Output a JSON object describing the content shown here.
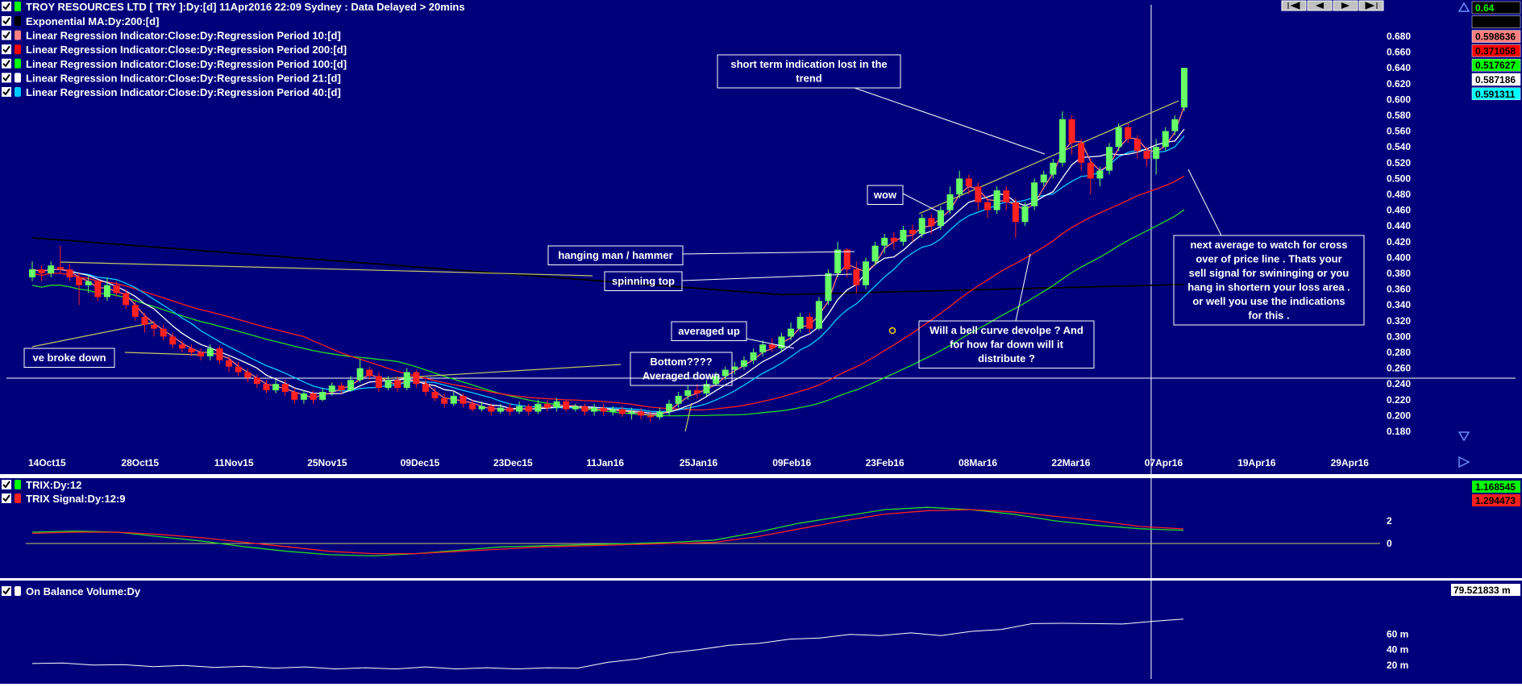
{
  "header": {
    "title": "TROY RESOURCES LTD [ TRY ]:Dy:[d]  11Apr2016 22:09 Sydney : Data Delayed > 20mins"
  },
  "legend_main": [
    {
      "label": "Exponential MA:Dy:200:[d]",
      "color": "#000000"
    },
    {
      "label": "Linear Regression Indicator:Close:Dy:Regression Period 10:[d]",
      "color": "#ff8080"
    },
    {
      "label": "Linear Regression Indicator:Close:Dy:Regression Period 200:[d]",
      "color": "#ff0000"
    },
    {
      "label": "Linear Regression Indicator:Close:Dy:Regression Period 100:[d]",
      "color": "#00ff00"
    },
    {
      "label": "Linear Regression Indicator:Close:Dy:Regression Period 21:[d]",
      "color": "#ffffff"
    },
    {
      "label": "Linear Regression Indicator:Close:Dy:Regression Period 40:[d]",
      "color": "#00ccff"
    }
  ],
  "value_badges": [
    {
      "value": "0.64",
      "bg": "#000000",
      "fg": "#00ff00"
    },
    {
      "value": "",
      "bg": "#000000",
      "fg": "#000000"
    },
    {
      "value": "0.598636",
      "bg": "#ff8080",
      "fg": "#000000"
    },
    {
      "value": "0.371058",
      "bg": "#ff0000",
      "fg": "#000000"
    },
    {
      "value": "0.517627",
      "bg": "#00ff00",
      "fg": "#000000"
    },
    {
      "value": "0.587186",
      "bg": "#ffffff",
      "fg": "#000000"
    },
    {
      "value": "0.591311",
      "bg": "#00ffff",
      "fg": "#000000"
    }
  ],
  "colors": {
    "background": "#00007b",
    "up_candle": "#66ff66",
    "down_candle": "#ff2020",
    "ema200": "#000000",
    "lr10": "#ff8080",
    "lr200": "#ff2020",
    "lr100": "#22dd22",
    "lr21": "#ffffff",
    "lr40": "#00ccff",
    "trendline": "#c8c864",
    "crosshair": "#ffffff"
  },
  "annotations": [
    {
      "name": "short-term-indication",
      "lines": [
        "short term indication lost in the",
        "trend"
      ]
    },
    {
      "name": "wow",
      "lines": [
        "wow"
      ]
    },
    {
      "name": "hanging-man",
      "lines": [
        "hanging man / hammer"
      ]
    },
    {
      "name": "spinning-top",
      "lines": [
        "spinning top"
      ]
    },
    {
      "name": "averaged-up",
      "lines": [
        "averaged up"
      ]
    },
    {
      "name": "bottom",
      "lines": [
        "Bottom????",
        "Averaged down"
      ]
    },
    {
      "name": "broke-down",
      "lines": [
        "ve broke down"
      ]
    },
    {
      "name": "bell-curve",
      "lines": [
        "Will a bell curve devolpe ? And",
        "for how far down will it",
        "distribute ?"
      ]
    },
    {
      "name": "next-average",
      "lines": [
        "next average to watch for cross",
        "over of price line . Thats your",
        "sell signal for swininging or you",
        "hang in shortern your loss area .",
        "or well you use the indications",
        "for this ."
      ]
    }
  ],
  "trix_panel": {
    "legend": [
      {
        "label": "TRIX:Dy:12",
        "color": "#00ff00"
      },
      {
        "label": "TRIX Signal:Dy:12:9",
        "color": "#ff2020"
      }
    ],
    "badges": [
      {
        "value": "1.168545",
        "bg": "#00ff00",
        "fg": "#000000"
      },
      {
        "value": "1.294473",
        "bg": "#ff2020",
        "fg": "#000000"
      }
    ]
  },
  "obv_panel": {
    "legend": [
      {
        "label": "On Balance Volume:Dy",
        "color": "#ffffff"
      }
    ],
    "badge": {
      "value": "79.521833 m",
      "bg": "#ffffff",
      "fg": "#000000"
    }
  },
  "chart_data": [
    {
      "type": "candlestick",
      "title": "TROY RESOURCES LTD [ TRY ]:Dy:[d]",
      "x_tick_labels": [
        "14Oct15",
        "28Oct15",
        "11Nov15",
        "25Nov15",
        "09Dec15",
        "23Dec15",
        "11Jan16",
        "25Jan16",
        "09Feb16",
        "23Feb16",
        "08Mar16",
        "22Mar16",
        "07Apr16",
        "19Apr16",
        "29Apr16"
      ],
      "y_ticks": [
        "0.680",
        "0.660",
        "0.640",
        "0.620",
        "0.600",
        "0.580",
        "0.560",
        "0.540",
        "0.520",
        "0.500",
        "0.480",
        "0.460",
        "0.440",
        "0.420",
        "0.400",
        "0.380",
        "0.360",
        "0.340",
        "0.320",
        "0.300",
        "0.280",
        "0.260",
        "0.240",
        "0.220",
        "0.200",
        "0.180"
      ],
      "ylim": [
        0.17,
        0.69
      ],
      "candles": [
        [
          0.375,
          0.385,
          0.395,
          0.37
        ],
        [
          0.385,
          0.38,
          0.39,
          0.37
        ],
        [
          0.38,
          0.39,
          0.395,
          0.375
        ],
        [
          0.388,
          0.385,
          0.415,
          0.38
        ],
        [
          0.385,
          0.375,
          0.392,
          0.37
        ],
        [
          0.375,
          0.365,
          0.38,
          0.34
        ],
        [
          0.365,
          0.37,
          0.378,
          0.355
        ],
        [
          0.37,
          0.35,
          0.372,
          0.345
        ],
        [
          0.35,
          0.365,
          0.375,
          0.345
        ],
        [
          0.365,
          0.355,
          0.37,
          0.35
        ],
        [
          0.355,
          0.34,
          0.36,
          0.335
        ],
        [
          0.34,
          0.325,
          0.345,
          0.32
        ],
        [
          0.325,
          0.315,
          0.33,
          0.305
        ],
        [
          0.315,
          0.31,
          0.32,
          0.3
        ],
        [
          0.31,
          0.3,
          0.315,
          0.295
        ],
        [
          0.3,
          0.29,
          0.305,
          0.285
        ],
        [
          0.29,
          0.285,
          0.295,
          0.28
        ],
        [
          0.285,
          0.28,
          0.29,
          0.275
        ],
        [
          0.28,
          0.275,
          0.285,
          0.27
        ],
        [
          0.275,
          0.285,
          0.29,
          0.27
        ],
        [
          0.285,
          0.27,
          0.288,
          0.265
        ],
        [
          0.27,
          0.262,
          0.275,
          0.255
        ],
        [
          0.262,
          0.255,
          0.268,
          0.25
        ],
        [
          0.255,
          0.248,
          0.26,
          0.242
        ],
        [
          0.248,
          0.24,
          0.252,
          0.235
        ],
        [
          0.24,
          0.232,
          0.245,
          0.228
        ],
        [
          0.232,
          0.24,
          0.245,
          0.228
        ],
        [
          0.24,
          0.23,
          0.245,
          0.225
        ],
        [
          0.23,
          0.22,
          0.235,
          0.215
        ],
        [
          0.22,
          0.228,
          0.232,
          0.215
        ],
        [
          0.228,
          0.22,
          0.232,
          0.215
        ],
        [
          0.22,
          0.23,
          0.235,
          0.218
        ],
        [
          0.23,
          0.238,
          0.242,
          0.225
        ],
        [
          0.238,
          0.232,
          0.242,
          0.228
        ],
        [
          0.232,
          0.245,
          0.25,
          0.23
        ],
        [
          0.245,
          0.26,
          0.272,
          0.242
        ],
        [
          0.258,
          0.25,
          0.262,
          0.245
        ],
        [
          0.25,
          0.235,
          0.255,
          0.23
        ],
        [
          0.235,
          0.245,
          0.25,
          0.232
        ],
        [
          0.245,
          0.235,
          0.25,
          0.23
        ],
        [
          0.235,
          0.255,
          0.26,
          0.232
        ],
        [
          0.255,
          0.24,
          0.258,
          0.235
        ],
        [
          0.24,
          0.23,
          0.245,
          0.225
        ],
        [
          0.23,
          0.222,
          0.235,
          0.218
        ],
        [
          0.222,
          0.215,
          0.228,
          0.21
        ],
        [
          0.215,
          0.225,
          0.23,
          0.212
        ],
        [
          0.225,
          0.215,
          0.228,
          0.21
        ],
        [
          0.215,
          0.208,
          0.22,
          0.205
        ],
        [
          0.208,
          0.212,
          0.218,
          0.205
        ],
        [
          0.212,
          0.205,
          0.215,
          0.2
        ],
        [
          0.205,
          0.21,
          0.215,
          0.202
        ],
        [
          0.21,
          0.205,
          0.215,
          0.2
        ],
        [
          0.205,
          0.212,
          0.218,
          0.202
        ],
        [
          0.212,
          0.205,
          0.215,
          0.2
        ],
        [
          0.205,
          0.215,
          0.22,
          0.202
        ],
        [
          0.215,
          0.21,
          0.22,
          0.205
        ],
        [
          0.21,
          0.218,
          0.222,
          0.205
        ],
        [
          0.218,
          0.208,
          0.22,
          0.205
        ],
        [
          0.208,
          0.212,
          0.215,
          0.205
        ],
        [
          0.212,
          0.205,
          0.215,
          0.2
        ],
        [
          0.205,
          0.21,
          0.215,
          0.2
        ],
        [
          0.21,
          0.205,
          0.215,
          0.2
        ],
        [
          0.205,
          0.208,
          0.212,
          0.2
        ],
        [
          0.208,
          0.202,
          0.212,
          0.198
        ],
        [
          0.202,
          0.205,
          0.21,
          0.195
        ],
        [
          0.205,
          0.2,
          0.21,
          0.195
        ],
        [
          0.2,
          0.198,
          0.205,
          0.192
        ],
        [
          0.198,
          0.205,
          0.21,
          0.195
        ],
        [
          0.205,
          0.215,
          0.22,
          0.2
        ],
        [
          0.215,
          0.225,
          0.23,
          0.21
        ],
        [
          0.225,
          0.232,
          0.238,
          0.22
        ],
        [
          0.232,
          0.228,
          0.24,
          0.222
        ],
        [
          0.228,
          0.24,
          0.245,
          0.225
        ],
        [
          0.24,
          0.25,
          0.255,
          0.238
        ],
        [
          0.25,
          0.258,
          0.262,
          0.245
        ],
        [
          0.258,
          0.262,
          0.268,
          0.252
        ],
        [
          0.262,
          0.27,
          0.275,
          0.258
        ],
        [
          0.27,
          0.28,
          0.285,
          0.265
        ],
        [
          0.28,
          0.29,
          0.295,
          0.275
        ],
        [
          0.29,
          0.285,
          0.298,
          0.28
        ],
        [
          0.285,
          0.3,
          0.305,
          0.28
        ],
        [
          0.3,
          0.31,
          0.318,
          0.295
        ],
        [
          0.31,
          0.325,
          0.33,
          0.305
        ],
        [
          0.325,
          0.31,
          0.33,
          0.305
        ],
        [
          0.31,
          0.345,
          0.35,
          0.308
        ],
        [
          0.345,
          0.38,
          0.385,
          0.34
        ],
        [
          0.38,
          0.41,
          0.42,
          0.375
        ],
        [
          0.41,
          0.385,
          0.412,
          0.375
        ],
        [
          0.385,
          0.365,
          0.395,
          0.355
        ],
        [
          0.365,
          0.395,
          0.4,
          0.36
        ],
        [
          0.395,
          0.415,
          0.42,
          0.39
        ],
        [
          0.415,
          0.425,
          0.43,
          0.405
        ],
        [
          0.425,
          0.42,
          0.432,
          0.41
        ],
        [
          0.42,
          0.435,
          0.44,
          0.415
        ],
        [
          0.435,
          0.43,
          0.442,
          0.42
        ],
        [
          0.43,
          0.45,
          0.455,
          0.425
        ],
        [
          0.45,
          0.44,
          0.455,
          0.43
        ],
        [
          0.44,
          0.46,
          0.465,
          0.435
        ],
        [
          0.46,
          0.48,
          0.49,
          0.455
        ],
        [
          0.48,
          0.5,
          0.51,
          0.475
        ],
        [
          0.5,
          0.49,
          0.505,
          0.48
        ],
        [
          0.49,
          0.47,
          0.495,
          0.46
        ],
        [
          0.47,
          0.46,
          0.475,
          0.45
        ],
        [
          0.46,
          0.485,
          0.49,
          0.455
        ],
        [
          0.485,
          0.47,
          0.49,
          0.46
        ],
        [
          0.47,
          0.445,
          0.475,
          0.425
        ],
        [
          0.445,
          0.465,
          0.47,
          0.44
        ],
        [
          0.465,
          0.495,
          0.5,
          0.46
        ],
        [
          0.495,
          0.505,
          0.51,
          0.49
        ],
        [
          0.505,
          0.52,
          0.525,
          0.5
        ],
        [
          0.52,
          0.575,
          0.585,
          0.515
        ],
        [
          0.575,
          0.545,
          0.58,
          0.53
        ],
        [
          0.545,
          0.52,
          0.55,
          0.51
        ],
        [
          0.52,
          0.5,
          0.525,
          0.48
        ],
        [
          0.5,
          0.51,
          0.515,
          0.49
        ],
        [
          0.51,
          0.54,
          0.545,
          0.505
        ],
        [
          0.54,
          0.565,
          0.57,
          0.535
        ],
        [
          0.565,
          0.55,
          0.57,
          0.545
        ],
        [
          0.55,
          0.535,
          0.555,
          0.525
        ],
        [
          0.535,
          0.525,
          0.54,
          0.515
        ],
        [
          0.525,
          0.54,
          0.55,
          0.505
        ],
        [
          0.54,
          0.56,
          0.565,
          0.535
        ],
        [
          0.56,
          0.575,
          0.58,
          0.555
        ],
        [
          0.59,
          0.64,
          0.64,
          0.585
        ]
      ]
    },
    {
      "type": "line",
      "title": "TRIX:Dy:12",
      "y_ticks": [
        "2",
        "0"
      ],
      "series": [
        {
          "name": "TRIX:Dy:12",
          "values": [
            1.0,
            1.1,
            1.0,
            0.6,
            0.2,
            -0.3,
            -0.7,
            -1.0,
            -1.1,
            -0.9,
            -0.6,
            -0.3,
            -0.2,
            -0.1,
            0.0,
            0.1,
            0.3,
            1.0,
            1.8,
            2.4,
            3.0,
            3.2,
            3.0,
            2.6,
            2.0,
            1.6,
            1.3,
            1.17
          ]
        },
        {
          "name": "TRIX Signal:Dy:12:9",
          "values": [
            0.9,
            1.0,
            1.0,
            0.8,
            0.5,
            0.1,
            -0.3,
            -0.7,
            -0.9,
            -0.9,
            -0.7,
            -0.5,
            -0.3,
            -0.2,
            -0.1,
            0.0,
            0.1,
            0.6,
            1.3,
            2.0,
            2.6,
            2.9,
            3.0,
            2.8,
            2.4,
            2.0,
            1.5,
            1.29
          ]
        }
      ]
    },
    {
      "type": "line",
      "title": "On Balance Volume:Dy",
      "y_ticks": [
        "60 m",
        "40 m",
        "20 m"
      ],
      "series": [
        {
          "name": "On Balance Volume:Dy",
          "values": [
            22,
            21,
            20,
            19,
            18,
            18,
            17,
            17,
            16,
            16,
            15,
            15,
            15,
            16,
            15,
            15,
            15,
            15,
            16,
            22,
            28,
            34,
            40,
            44,
            48,
            52,
            55,
            58,
            58,
            60,
            58,
            62,
            66,
            72,
            74,
            72,
            73,
            75,
            79.5
          ]
        }
      ]
    }
  ]
}
